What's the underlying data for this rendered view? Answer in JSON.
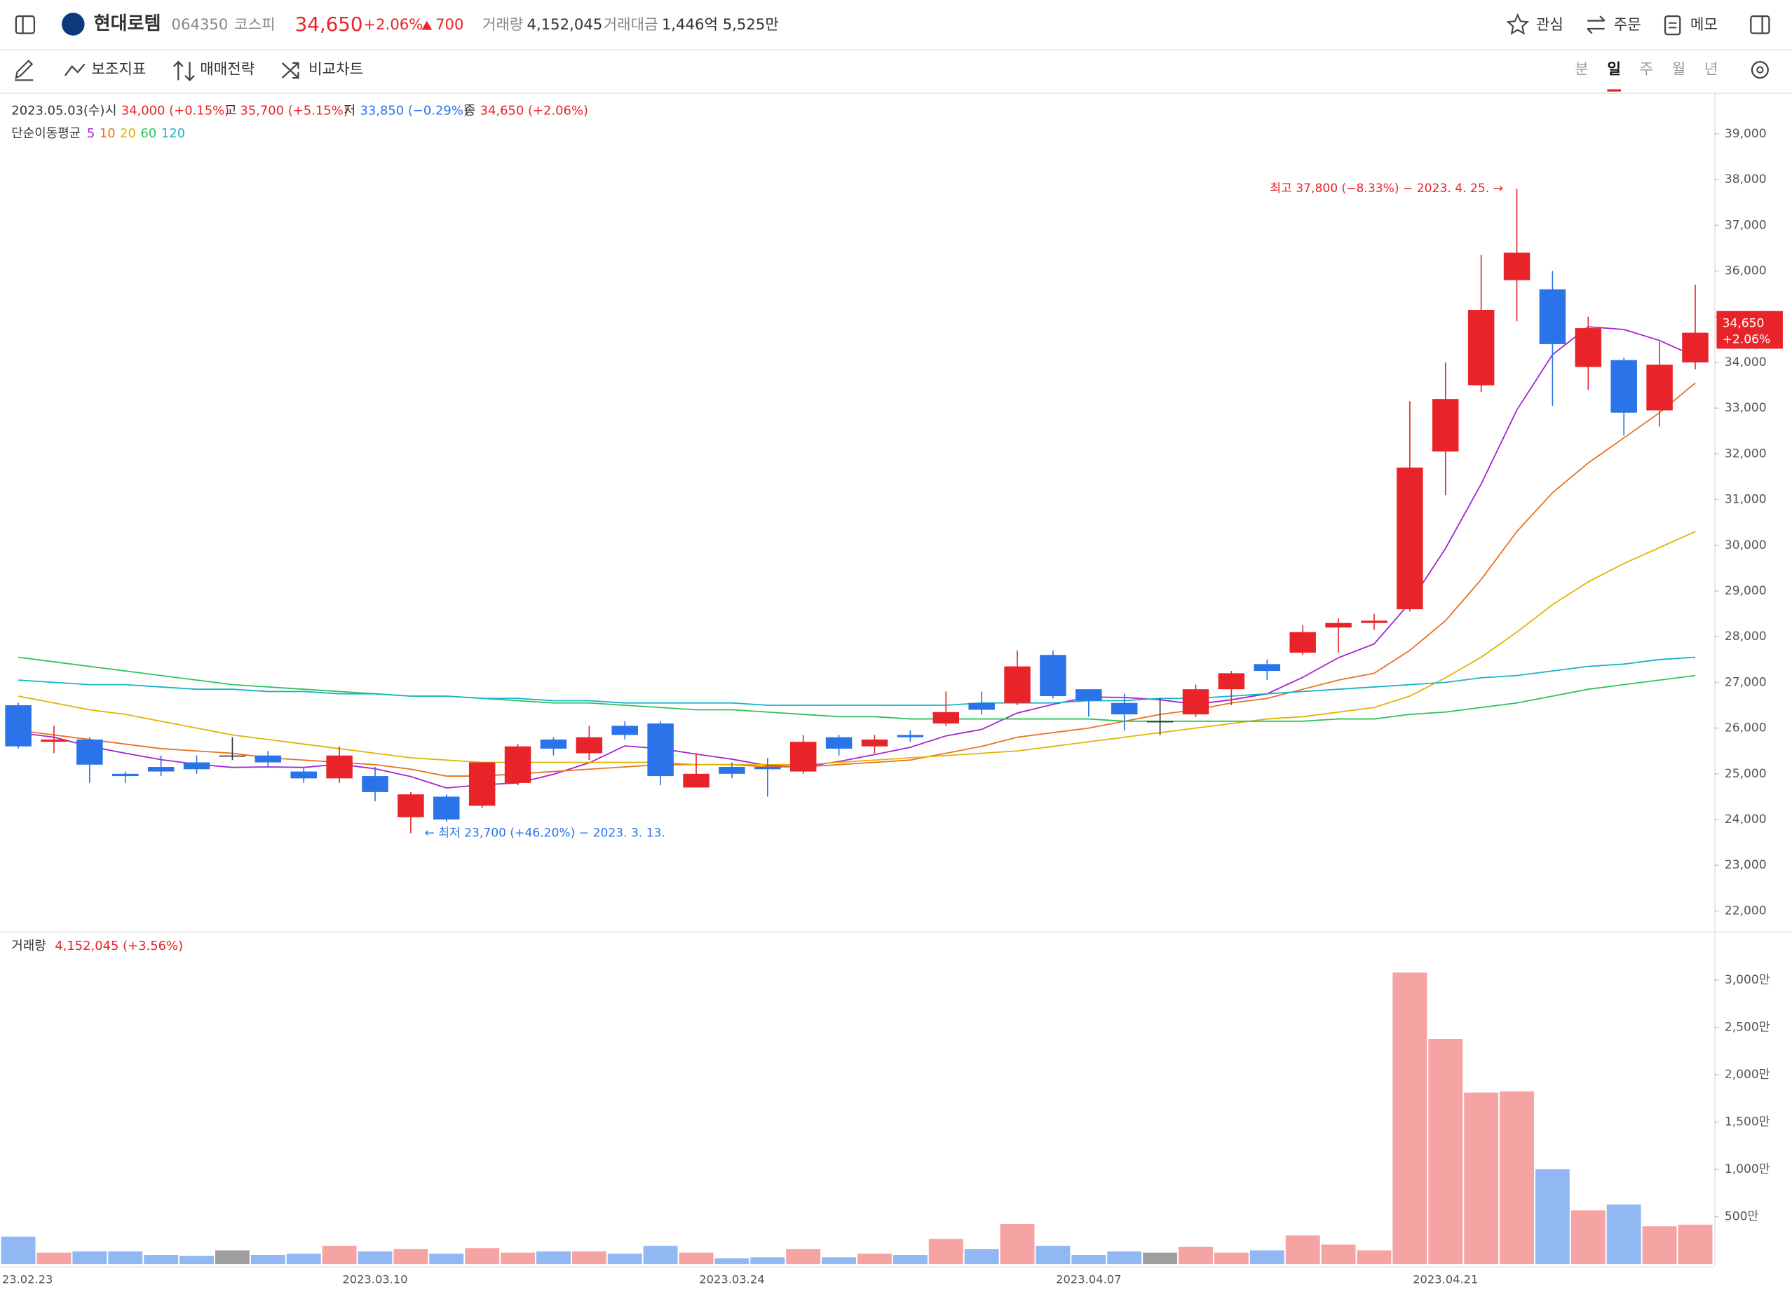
{
  "header": {
    "name": "현대로템",
    "code": "064350",
    "market": "코스피",
    "price": "34,650",
    "change_pct": "+2.06%",
    "change": "700",
    "volume_label": "거래량",
    "volume": "4,152,045",
    "amount_label": "거래대금",
    "amount": "1,446억 5,525만",
    "watch": "관심",
    "order": "주문",
    "memo": "메모"
  },
  "toolbar": {
    "indicators": "보조지표",
    "strategy": "매매전략",
    "compare": "비교차트",
    "periods": [
      "분",
      "일",
      "주",
      "월",
      "년"
    ],
    "active_period": 1
  },
  "chart_data": [
    {
      "type": "candlestick",
      "info": {
        "date": "2023.05.03(수)",
        "open_label": "시",
        "open": "34,000 (+0.15%)",
        "high_label": "고",
        "high": "35,700 (+5.15%)",
        "low_label": "저",
        "low": "33,850 (−0.29%)",
        "close_label": "종",
        "close": "34,650 (+2.06%)"
      },
      "ma_title": "단순이동평균",
      "up_color": "#e8242a",
      "down_color": "#2a73e8",
      "flat_color": "#333333",
      "open": [
        26500,
        25700,
        25750,
        25000,
        25150,
        25250,
        25400,
        25400,
        25050,
        24900,
        24950,
        24050,
        24500,
        24300,
        24800,
        25750,
        25450,
        26050,
        26100,
        24700,
        25150,
        25150,
        25050,
        25800,
        25600,
        25850,
        26100,
        26550,
        26550,
        27600,
        26850,
        26550,
        26150,
        26300,
        26850,
        27400,
        27650,
        28200,
        28300,
        28600,
        32050,
        33500,
        35800,
        35600,
        33900,
        34050,
        32950,
        34000
      ],
      "high": [
        26550,
        26050,
        25800,
        25050,
        25400,
        25400,
        25800,
        25500,
        25150,
        25600,
        25150,
        24600,
        24550,
        25250,
        25650,
        25800,
        26050,
        26150,
        26150,
        25450,
        25250,
        25350,
        25850,
        25850,
        25850,
        25950,
        26800,
        26800,
        27700,
        27700,
        26850,
        26750,
        26650,
        26950,
        27250,
        27500,
        28250,
        28400,
        28500,
        33150,
        34000,
        36350,
        37800,
        36000,
        35000,
        34100,
        34450,
        35700
      ],
      "low": [
        25550,
        25450,
        24800,
        24800,
        24950,
        25000,
        25300,
        25150,
        24800,
        24800,
        24400,
        23700,
        23950,
        24250,
        24750,
        25400,
        25300,
        25750,
        24750,
        24700,
        24900,
        24500,
        25000,
        25400,
        25450,
        25700,
        26050,
        26300,
        26500,
        26650,
        26250,
        25950,
        25850,
        26250,
        26500,
        27050,
        27600,
        27650,
        28150,
        28550,
        31100,
        33350,
        34900,
        33050,
        33400,
        32400,
        32600,
        33850
      ],
      "close": [
        25600,
        25750,
        25200,
        24950,
        25050,
        25100,
        25400,
        25250,
        24900,
        25400,
        24600,
        24550,
        24000,
        25250,
        25600,
        25550,
        25800,
        25850,
        24950,
        25000,
        25000,
        25100,
        25700,
        25550,
        25750,
        25800,
        26350,
        26400,
        27350,
        26700,
        26600,
        26300,
        26150,
        26850,
        27200,
        27250,
        28100,
        28300,
        28350,
        31700,
        33200,
        35150,
        36400,
        34400,
        34750,
        32900,
        33950,
        34650
      ],
      "series": [
        {
          "name": "5",
          "color": "#a424d0",
          "values": [
            25900,
            25800,
            25600,
            25450,
            25310,
            25210,
            25140,
            25150,
            25140,
            25210,
            25110,
            24940,
            24690,
            24760,
            24800,
            24990,
            25240,
            25610,
            25550,
            25430,
            25320,
            25180,
            25150,
            25270,
            25420,
            25580,
            25830,
            25970,
            26330,
            26520,
            26680,
            26670,
            26620,
            26520,
            26620,
            26750,
            27110,
            27540,
            27840,
            28740,
            29930,
            31340,
            32960,
            34170,
            34780,
            34720,
            34480,
            34130
          ]
        },
        {
          "name": "10",
          "color": "#e8721e",
          "values": [
            25950,
            25850,
            25750,
            25650,
            25550,
            25500,
            25450,
            25350,
            25300,
            25250,
            25200,
            25100,
            24950,
            24950,
            25000,
            25050,
            25100,
            25150,
            25200,
            25200,
            25200,
            25150,
            25150,
            25200,
            25250,
            25300,
            25450,
            25600,
            25800,
            25900,
            26000,
            26150,
            26300,
            26400,
            26550,
            26650,
            26850,
            27050,
            27200,
            27700,
            28350,
            29250,
            30300,
            31150,
            31800,
            32350,
            32900,
            33550
          ]
        },
        {
          "name": "20",
          "color": "#e0b400",
          "values": [
            26700,
            26550,
            26400,
            26300,
            26150,
            26000,
            25850,
            25750,
            25650,
            25550,
            25450,
            25350,
            25300,
            25250,
            25250,
            25250,
            25250,
            25250,
            25250,
            25200,
            25200,
            25200,
            25200,
            25250,
            25300,
            25350,
            25400,
            25450,
            25500,
            25600,
            25700,
            25800,
            25900,
            26000,
            26100,
            26200,
            26250,
            26350,
            26450,
            26700,
            27100,
            27550,
            28100,
            28700,
            29200,
            29600,
            29950,
            30300
          ]
        },
        {
          "name": "60",
          "color": "#2fc25b",
          "values": [
            27550,
            27450,
            27350,
            27250,
            27150,
            27050,
            26950,
            26900,
            26850,
            26800,
            26750,
            26700,
            26700,
            26650,
            26600,
            26550,
            26550,
            26500,
            26450,
            26400,
            26400,
            26350,
            26300,
            26250,
            26250,
            26200,
            26200,
            26200,
            26200,
            26200,
            26200,
            26150,
            26150,
            26150,
            26150,
            26150,
            26150,
            26200,
            26200,
            26300,
            26350,
            26450,
            26550,
            26700,
            26850,
            26950,
            27050,
            27150
          ]
        },
        {
          "name": "120",
          "color": "#17b3c9",
          "values": [
            27050,
            27000,
            26950,
            26950,
            26900,
            26850,
            26850,
            26800,
            26800,
            26750,
            26750,
            26700,
            26700,
            26650,
            26650,
            26600,
            26600,
            26550,
            26550,
            26550,
            26550,
            26500,
            26500,
            26500,
            26500,
            26500,
            26500,
            26550,
            26550,
            26550,
            26600,
            26600,
            26650,
            26650,
            26700,
            26750,
            26800,
            26850,
            26900,
            26950,
            27000,
            27100,
            27150,
            27250,
            27350,
            27400,
            27500,
            27550
          ]
        }
      ],
      "annotations": {
        "high": "최고 37,800 (−8.33%) − 2023. 4. 25. →",
        "low": "← 최저 23,700 (+46.20%) − 2023. 3. 13."
      },
      "ylim": [
        21550,
        39875
      ],
      "yticks": [
        {
          "value": 22000,
          "label": "22,000"
        },
        {
          "value": 23000,
          "label": "23,000"
        },
        {
          "value": 24000,
          "label": "24,000"
        },
        {
          "value": 25000,
          "label": "25,000"
        },
        {
          "value": 26000,
          "label": "26,000"
        },
        {
          "value": 27000,
          "label": "27,000"
        },
        {
          "value": 28000,
          "label": "28,000"
        },
        {
          "value": 29000,
          "label": "29,000"
        },
        {
          "value": 30000,
          "label": "30,000"
        },
        {
          "value": 31000,
          "label": "31,000"
        },
        {
          "value": 32000,
          "label": "32,000"
        },
        {
          "value": 33000,
          "label": "33,000"
        },
        {
          "value": 34000,
          "label": "34,000"
        },
        {
          "value": 35000,
          "label": "35,000"
        },
        {
          "value": 36000,
          "label": "36,000"
        },
        {
          "value": 37000,
          "label": "37,000"
        },
        {
          "value": 38000,
          "label": "38,000"
        },
        {
          "value": 39000,
          "label": "39,000"
        }
      ]
    },
    {
      "type": "bar",
      "title": "거래량",
      "label": "4,152,045 (+3.56%)",
      "up_color": "#f5a3a3",
      "down_color": "#91b8f2",
      "flat_color": "#9e9e9e",
      "categories": [
        "23.02.23",
        null,
        null,
        null,
        null,
        null,
        null,
        null,
        null,
        null,
        "2023.03.10",
        null,
        null,
        null,
        null,
        null,
        null,
        null,
        null,
        null,
        "2023.03.24",
        null,
        null,
        null,
        null,
        null,
        null,
        null,
        null,
        null,
        "2023.04.07",
        null,
        null,
        null,
        null,
        null,
        null,
        null,
        null,
        null,
        "2023.04.21",
        null,
        null,
        null,
        null,
        null,
        null,
        null
      ],
      "values": [
        290,
        121,
        133,
        133,
        97,
        85,
        145,
        97,
        109,
        193,
        133,
        157,
        109,
        169,
        121,
        133,
        133,
        109,
        193,
        121,
        60,
        72,
        157,
        72,
        109,
        97,
        266,
        157,
        423,
        193,
        97,
        133,
        121,
        181,
        121,
        145,
        302,
        205,
        145,
        3080,
        2379,
        1812,
        1824,
        1002,
        568,
        628,
        399,
        415.2045
      ],
      "ylim": [
        0,
        3514
      ],
      "yticks": [
        {
          "value": 500,
          "label": "500만"
        },
        {
          "value": 1000,
          "label": "1,000만"
        },
        {
          "value": 1500,
          "label": "1,500만"
        },
        {
          "value": 2000,
          "label": "2,000만"
        },
        {
          "value": 2500,
          "label": "2,500만"
        },
        {
          "value": 3000,
          "label": "3,000만"
        }
      ]
    }
  ]
}
